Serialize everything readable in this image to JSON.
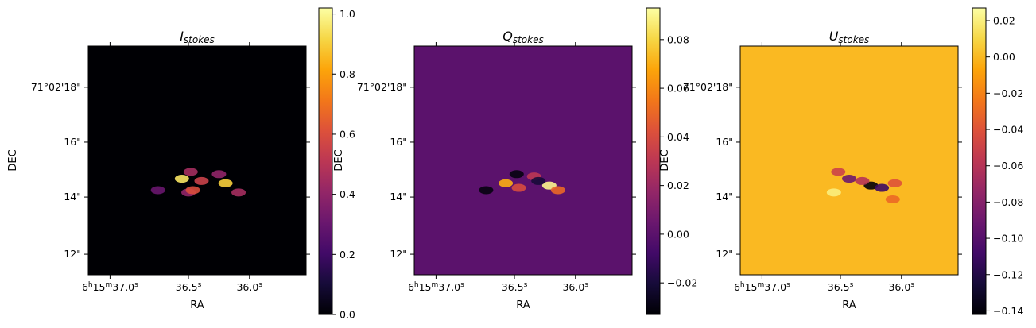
{
  "chart_data": [
    {
      "type": "heatmap",
      "title_base": "I",
      "title_sub": "stokes",
      "xlabel": "RA",
      "ylabel": "DEC",
      "xticklabels": [
        "6h15m37.0s",
        "36.5s",
        "36.0s"
      ],
      "yticklabels": [
        "71°02'18\"",
        "16\"",
        "14\"",
        "12\""
      ],
      "colormap": "inferno",
      "colorbar": {
        "range": [
          0.0,
          1.02
        ],
        "ticks": [
          0.0,
          0.2,
          0.4,
          0.6,
          0.8,
          1.0
        ],
        "ticklabels": [
          "0.0",
          "0.2",
          "0.4",
          "0.6",
          "0.8",
          "1.0"
        ]
      },
      "background_value": 0.0,
      "features": [
        {
          "x": 0.43,
          "y": 0.42,
          "value": 0.95
        },
        {
          "x": 0.63,
          "y": 0.4,
          "value": 0.9
        },
        {
          "x": 0.52,
          "y": 0.41,
          "value": 0.55
        },
        {
          "x": 0.69,
          "y": 0.36,
          "value": 0.45
        },
        {
          "x": 0.46,
          "y": 0.36,
          "value": 0.4
        },
        {
          "x": 0.47,
          "y": 0.45,
          "value": 0.45
        },
        {
          "x": 0.48,
          "y": 0.37,
          "value": 0.6
        },
        {
          "x": 0.6,
          "y": 0.44,
          "value": 0.4
        },
        {
          "x": 0.32,
          "y": 0.37,
          "value": 0.3
        }
      ]
    },
    {
      "type": "heatmap",
      "title_base": "Q",
      "title_sub": "stokes",
      "xlabel": "RA",
      "ylabel": "DEC",
      "xticklabels": [
        "6h15m37.0s",
        "36.5s",
        "36.0s"
      ],
      "yticklabels": [
        "71°02'18\"",
        "16\"",
        "14\"",
        "12\""
      ],
      "colormap": "inferno",
      "colorbar": {
        "range": [
          -0.033,
          0.093
        ],
        "ticks": [
          -0.02,
          0.0,
          0.02,
          0.04,
          0.06,
          0.08
        ],
        "ticklabels": [
          "−0.02",
          "0.00",
          "0.02",
          "0.04",
          "0.06",
          "0.08"
        ]
      },
      "background_value": 0.0,
      "features": [
        {
          "x": 0.42,
          "y": 0.4,
          "value": 0.07
        },
        {
          "x": 0.62,
          "y": 0.39,
          "value": 0.09
        },
        {
          "x": 0.66,
          "y": 0.37,
          "value": 0.05
        },
        {
          "x": 0.48,
          "y": 0.38,
          "value": 0.04
        },
        {
          "x": 0.55,
          "y": 0.43,
          "value": 0.03
        },
        {
          "x": 0.47,
          "y": 0.44,
          "value": -0.03
        },
        {
          "x": 0.33,
          "y": 0.37,
          "value": -0.03
        },
        {
          "x": 0.57,
          "y": 0.41,
          "value": -0.02
        }
      ]
    },
    {
      "type": "heatmap",
      "title_base": "U",
      "title_sub": "stokes",
      "xlabel": "RA",
      "ylabel": "DEC",
      "xticklabels": [
        "6h15m37.0s",
        "36.5s",
        "36.0s"
      ],
      "yticklabels": [
        "71°02'18\"",
        "16\"",
        "14\"",
        "12\""
      ],
      "colormap": "inferno",
      "colorbar": {
        "range": [
          -0.142,
          0.027
        ],
        "ticks": [
          -0.14,
          -0.12,
          -0.1,
          -0.08,
          -0.06,
          -0.04,
          -0.02,
          0.0,
          0.02
        ],
        "ticklabels": [
          "−0.14",
          "−0.12",
          "−0.10",
          "−0.08",
          "−0.06",
          "−0.04",
          "−0.02",
          "0.00",
          "0.02"
        ]
      },
      "background_value": 0.0,
      "features": [
        {
          "x": 0.5,
          "y": 0.42,
          "value": -0.09
        },
        {
          "x": 0.6,
          "y": 0.39,
          "value": -0.14
        },
        {
          "x": 0.65,
          "y": 0.38,
          "value": -0.11
        },
        {
          "x": 0.56,
          "y": 0.41,
          "value": -0.06
        },
        {
          "x": 0.45,
          "y": 0.45,
          "value": -0.05
        },
        {
          "x": 0.71,
          "y": 0.4,
          "value": -0.04
        },
        {
          "x": 0.7,
          "y": 0.33,
          "value": -0.03
        },
        {
          "x": 0.43,
          "y": 0.36,
          "value": 0.02
        }
      ]
    }
  ]
}
